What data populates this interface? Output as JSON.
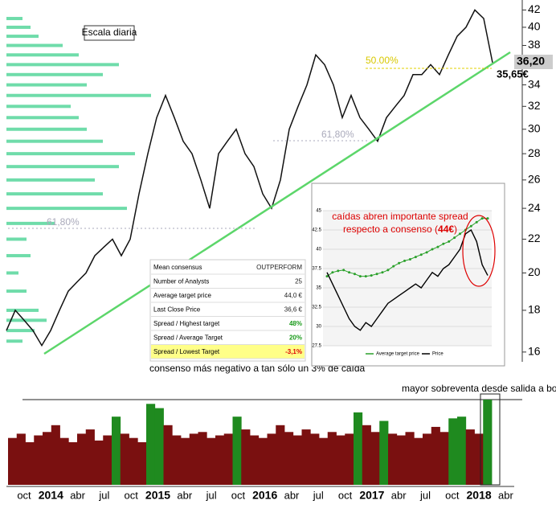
{
  "chart_data": [
    {
      "type": "line",
      "log_scale": true,
      "grid": false,
      "color": "#111111",
      "ylim": [
        15.6,
        43.2
      ],
      "yticks": [
        16,
        18,
        20,
        22,
        24,
        26,
        28,
        30,
        32,
        34,
        36,
        38,
        40,
        42
      ],
      "values": [
        17,
        18,
        17.5,
        17,
        16.3,
        17,
        18,
        19,
        19.5,
        20,
        21,
        21.5,
        22,
        21,
        22,
        25,
        28,
        31,
        33,
        31,
        29,
        28,
        26,
        24,
        28,
        29,
        30,
        28,
        27,
        25,
        24,
        26,
        30,
        32,
        34,
        37,
        36,
        34,
        31,
        33,
        31,
        30,
        29,
        31,
        32,
        33,
        35,
        35,
        36,
        35,
        37,
        39,
        40,
        42,
        41,
        36.2
      ],
      "volume_profile": {
        "color": "#6fdcaa",
        "prices": [
          16.5,
          17,
          17.5,
          18,
          19,
          20,
          21,
          22,
          23,
          24,
          25,
          26,
          27,
          28,
          29,
          30,
          31,
          32,
          33,
          34,
          35,
          36,
          37,
          38,
          39,
          40,
          41
        ],
        "values": [
          20,
          35,
          50,
          40,
          25,
          15,
          30,
          25,
          60,
          150,
          120,
          110,
          140,
          160,
          120,
          100,
          90,
          80,
          180,
          100,
          120,
          140,
          90,
          70,
          40,
          30,
          20
        ]
      },
      "annotations": {
        "scale": "Escala diaria",
        "fib50": "50.00%",
        "fib618a": "61,80%",
        "fib618b": "61,80%",
        "last_price": "36,20",
        "support": "35,65€",
        "note": "consenso más negativo a tan sólo un 3% de caída"
      }
    },
    {
      "type": "bar",
      "colors": {
        "low": "#7a1010",
        "high": "#1f8a1f"
      },
      "threshold": 72,
      "values": [
        55,
        60,
        50,
        58,
        62,
        70,
        55,
        50,
        60,
        65,
        52,
        58,
        80,
        60,
        55,
        50,
        95,
        90,
        70,
        58,
        55,
        60,
        62,
        55,
        58,
        60,
        80,
        65,
        58,
        55,
        60,
        70,
        62,
        58,
        65,
        60,
        55,
        62,
        58,
        60,
        85,
        70,
        62,
        75,
        60,
        58,
        62,
        55,
        60,
        68,
        62,
        78,
        80,
        65,
        60,
        100
      ],
      "x_labels": [
        "oct",
        "2014",
        "abr",
        "jul",
        "oct",
        "2015",
        "abr",
        "jul",
        "oct",
        "2016",
        "abr",
        "jul",
        "oct",
        "2017",
        "abr",
        "jul",
        "oct",
        "2018",
        "abr"
      ],
      "annotation": "mayor sobreventa desde salida a bolsa"
    },
    {
      "type": "line",
      "ylim": [
        27.5,
        45
      ],
      "yticks": [
        27.5,
        30,
        32.5,
        35,
        37.5,
        40,
        42.5,
        45
      ],
      "series": [
        {
          "name": "Average target price",
          "color": "#2aa02a",
          "values": [
            36.5,
            37,
            37.2,
            37.3,
            37,
            36.8,
            36.5,
            36.5,
            36.6,
            36.8,
            37,
            37.3,
            37.8,
            38.2,
            38.5,
            38.7,
            39,
            39.3,
            39.6,
            40,
            40.3,
            40.7,
            41,
            41.5,
            42,
            42.5,
            43,
            43.5,
            44,
            44
          ]
        },
        {
          "name": "Price",
          "color": "#000000",
          "values": [
            37,
            35.5,
            34,
            32.5,
            31,
            30,
            29.5,
            30.5,
            30,
            31,
            32,
            33,
            33.5,
            34,
            34.5,
            35,
            35.5,
            35,
            36,
            37,
            36.5,
            37.5,
            38,
            39,
            40,
            42,
            42.5,
            41,
            38,
            36.6
          ]
        }
      ],
      "annotation": [
        "caídas abren importante spread",
        "respecto a consenso (",
        "44€",
        ")"
      ]
    }
  ],
  "table": {
    "rows": [
      [
        "Mean consensus",
        "OUTPERFORM"
      ],
      [
        "Number of Analysts",
        "25"
      ],
      [
        "Average target price",
        "44,0 €"
      ],
      [
        "Last Close Price",
        "36,6 €"
      ],
      [
        "Spread / Highest target",
        "48%"
      ],
      [
        "Spread / Average Target",
        "20%"
      ],
      [
        "Spread / Lowest Target",
        "-3,1%"
      ]
    ]
  }
}
